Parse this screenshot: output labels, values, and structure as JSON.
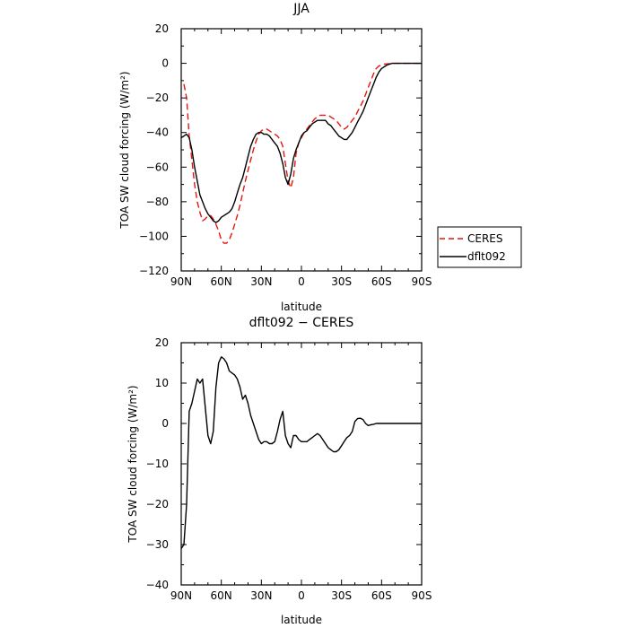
{
  "chart_data": [
    {
      "type": "line",
      "title": "JJA",
      "xlabel": "latitude",
      "ylabel": "TOA SW cloud forcing (W/m²)",
      "xlim": [
        90,
        -90
      ],
      "ylim": [
        -120,
        20
      ],
      "xticks": [
        90,
        60,
        30,
        0,
        -30,
        -60,
        -90
      ],
      "xtick_labels": [
        "90N",
        "60N",
        "30N",
        "0",
        "30S",
        "60S",
        "90S"
      ],
      "yticks": [
        -120,
        -100,
        -80,
        -60,
        -40,
        -20,
        0,
        20
      ],
      "ytick_labels": [
        "−120",
        "−100",
        "−80",
        "−60",
        "−40",
        "−20",
        "0",
        "20"
      ],
      "legend": "outside-right",
      "series": [
        {
          "name": "CERES",
          "color": "#e8140f",
          "dash": "dashed",
          "x": [
            88,
            86,
            84,
            82,
            80,
            78,
            76,
            74,
            72,
            70,
            68,
            66,
            64,
            62,
            60,
            58,
            56,
            54,
            52,
            50,
            48,
            46,
            44,
            42,
            40,
            38,
            36,
            34,
            32,
            30,
            28,
            26,
            24,
            22,
            20,
            18,
            16,
            14,
            12,
            10,
            8,
            6,
            4,
            2,
            0,
            -2,
            -4,
            -6,
            -8,
            -10,
            -12,
            -14,
            -16,
            -18,
            -20,
            -22,
            -24,
            -26,
            -28,
            -30,
            -32,
            -34,
            -36,
            -38,
            -40,
            -42,
            -44,
            -46,
            -48,
            -50,
            -52,
            -54,
            -56,
            -58,
            -60,
            -62,
            -64,
            -66,
            -68,
            -70,
            -72,
            -74,
            -76,
            -78,
            -80,
            -82,
            -84,
            -86,
            -88,
            -90
          ],
          "y": [
            -12,
            -20,
            -42,
            -56,
            -70,
            -80,
            -86,
            -91,
            -90,
            -88,
            -88,
            -90,
            -93,
            -97,
            -102,
            -104,
            -104,
            -102,
            -98,
            -93,
            -88,
            -82,
            -75,
            -68,
            -62,
            -56,
            -50,
            -45,
            -41,
            -39,
            -38,
            -38,
            -39,
            -40,
            -41,
            -42,
            -44,
            -48,
            -58,
            -68,
            -72,
            -66,
            -52,
            -46,
            -43,
            -40,
            -38,
            -36,
            -34,
            -32,
            -31,
            -30,
            -30,
            -30,
            -30,
            -31,
            -32,
            -33,
            -35,
            -37,
            -38,
            -37,
            -35,
            -33,
            -31,
            -28,
            -25,
            -22,
            -18,
            -14,
            -10,
            -6,
            -3,
            -1.5,
            -1,
            -0.5,
            -0.3,
            -0.2,
            -0.1,
            0,
            0,
            0,
            0,
            0,
            0,
            0,
            0,
            0,
            0,
            0
          ]
        },
        {
          "name": "dflt092",
          "color": "#000000",
          "dash": "solid",
          "x": [
            90,
            88,
            86,
            84,
            82,
            80,
            78,
            76,
            74,
            72,
            70,
            68,
            66,
            64,
            62,
            60,
            58,
            56,
            54,
            52,
            50,
            48,
            46,
            44,
            42,
            40,
            38,
            36,
            34,
            32,
            30,
            28,
            26,
            24,
            22,
            20,
            18,
            16,
            14,
            12,
            10,
            8,
            6,
            4,
            2,
            0,
            -2,
            -4,
            -6,
            -8,
            -10,
            -12,
            -14,
            -16,
            -18,
            -20,
            -22,
            -24,
            -26,
            -28,
            -30,
            -32,
            -34,
            -36,
            -38,
            -40,
            -42,
            -44,
            -46,
            -48,
            -50,
            -52,
            -54,
            -56,
            -58,
            -60,
            -62,
            -64,
            -66,
            -68,
            -70,
            -72,
            -74,
            -76,
            -78,
            -80,
            -82,
            -84,
            -86,
            -88,
            -90
          ],
          "y": [
            -43,
            -42,
            -41,
            -43,
            -50,
            -60,
            -68,
            -76,
            -80,
            -84,
            -87,
            -89,
            -91,
            -92,
            -91,
            -89,
            -88,
            -87,
            -86,
            -84,
            -80,
            -75,
            -70,
            -66,
            -60,
            -54,
            -48,
            -44,
            -41,
            -40,
            -40,
            -41,
            -41,
            -42,
            -44,
            -46,
            -48,
            -52,
            -58,
            -66,
            -70,
            -64,
            -55,
            -50,
            -46,
            -42,
            -40,
            -39,
            -37,
            -35,
            -34,
            -33,
            -33,
            -33,
            -33,
            -35,
            -36,
            -38,
            -40,
            -42,
            -43,
            -44,
            -44,
            -42,
            -40,
            -37,
            -34,
            -31,
            -28,
            -24,
            -20,
            -16,
            -12,
            -8,
            -5,
            -3,
            -2,
            -1,
            -0.5,
            0,
            0,
            0,
            0,
            0,
            0,
            0,
            0,
            0,
            0,
            0,
            0
          ]
        }
      ]
    },
    {
      "type": "line",
      "title": "dflt092 − CERES",
      "xlabel": "latitude",
      "ylabel": "TOA SW cloud forcing (W/m²)",
      "xlim": [
        90,
        -90
      ],
      "ylim": [
        -40,
        20
      ],
      "xticks": [
        90,
        60,
        30,
        0,
        -30,
        -60,
        -90
      ],
      "xtick_labels": [
        "90N",
        "60N",
        "30N",
        "0",
        "30S",
        "60S",
        "90S"
      ],
      "yticks": [
        -40,
        -30,
        -20,
        -10,
        0,
        10,
        20
      ],
      "ytick_labels": [
        "−40",
        "−30",
        "−20",
        "−10",
        "0",
        "10",
        "20"
      ],
      "series": [
        {
          "color": "#000000",
          "dash": "solid",
          "x": [
            90,
            88,
            86,
            84,
            82,
            80,
            78,
            76,
            74,
            72,
            70,
            68,
            66,
            64,
            62,
            60,
            58,
            56,
            54,
            52,
            50,
            48,
            46,
            44,
            42,
            40,
            38,
            36,
            34,
            32,
            30,
            28,
            26,
            24,
            22,
            20,
            18,
            16,
            14,
            12,
            10,
            8,
            6,
            4,
            2,
            0,
            -2,
            -4,
            -6,
            -8,
            -10,
            -12,
            -14,
            -16,
            -18,
            -20,
            -22,
            -24,
            -26,
            -28,
            -30,
            -32,
            -34,
            -36,
            -38,
            -40,
            -42,
            -44,
            -46,
            -48,
            -50,
            -52,
            -54,
            -56,
            -58,
            -60,
            -62,
            -64,
            -66,
            -68,
            -70,
            -72,
            -74,
            -76,
            -78,
            -80,
            -82,
            -84,
            -86,
            -88,
            -90
          ],
          "y": [
            -31,
            -30,
            -20,
            3,
            5,
            8,
            11,
            10,
            11,
            4,
            -3,
            -5,
            -2,
            9,
            15,
            16.5,
            16,
            15,
            13,
            12.5,
            12,
            11,
            9,
            6,
            7,
            5,
            2,
            0,
            -2,
            -4,
            -5,
            -4.5,
            -4.5,
            -5,
            -5,
            -4.5,
            -2,
            1,
            3,
            -3,
            -5,
            -6,
            -3,
            -3,
            -4,
            -4.5,
            -4.5,
            -4.5,
            -4,
            -3.5,
            -3,
            -2.5,
            -3,
            -4,
            -5,
            -6,
            -6.5,
            -7,
            -7,
            -6.5,
            -5.5,
            -4.5,
            -3.5,
            -3,
            -2,
            0.5,
            1.2,
            1.3,
            1,
            0,
            -0.5,
            -0.3,
            -0.2,
            0,
            0,
            0,
            0,
            0,
            0,
            0,
            0,
            0,
            0,
            0,
            0,
            0,
            0,
            0,
            0,
            0,
            0
          ]
        }
      ]
    }
  ]
}
